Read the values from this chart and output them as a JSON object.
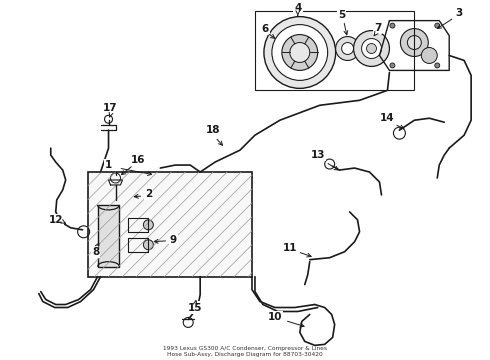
{
  "bg_color": "#ffffff",
  "line_color": "#1a1a1a",
  "fig_width": 4.9,
  "fig_height": 3.6,
  "dpi": 100,
  "title": "1993 Lexus GS300 A/C Condenser, Compressor & Lines\nHose Sub-Assy, Discharge Diagram for 88703-30420"
}
